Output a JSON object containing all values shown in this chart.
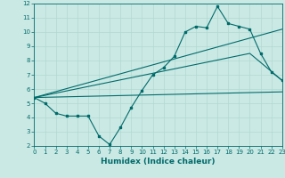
{
  "title": "",
  "xlabel": "Humidex (Indice chaleur)",
  "ylabel": "",
  "xlim": [
    0,
    23
  ],
  "ylim": [
    2,
    12
  ],
  "xticks": [
    0,
    1,
    2,
    3,
    4,
    5,
    6,
    7,
    8,
    9,
    10,
    11,
    12,
    13,
    14,
    15,
    16,
    17,
    18,
    19,
    20,
    21,
    22,
    23
  ],
  "yticks": [
    2,
    3,
    4,
    5,
    6,
    7,
    8,
    9,
    10,
    11,
    12
  ],
  "bg_color": "#cbe9e4",
  "grid_color": "#b0d9d2",
  "line_color": "#006b6b",
  "line1_x": [
    0,
    1,
    2,
    3,
    4,
    5,
    6,
    7,
    8,
    9,
    10,
    11,
    12,
    13,
    14,
    15,
    16,
    17,
    18,
    19,
    20,
    21,
    22,
    23
  ],
  "line1_y": [
    5.4,
    5.0,
    4.3,
    4.1,
    4.1,
    4.1,
    2.7,
    2.1,
    3.3,
    4.7,
    5.9,
    7.0,
    7.5,
    8.3,
    10.0,
    10.4,
    10.3,
    11.8,
    10.6,
    10.4,
    10.2,
    8.5,
    7.2,
    6.6
  ],
  "line2_x": [
    0,
    23
  ],
  "line2_y": [
    5.4,
    5.8
  ],
  "line3_x": [
    0,
    23
  ],
  "line3_y": [
    5.4,
    10.2
  ],
  "line4_x": [
    0,
    20,
    23
  ],
  "line4_y": [
    5.4,
    8.5,
    6.6
  ]
}
